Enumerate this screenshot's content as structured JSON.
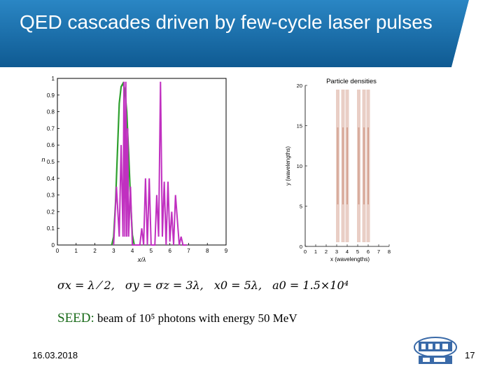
{
  "slide": {
    "title": "QED cascades driven by few-cycle laser pulses",
    "date": "16.03.2018",
    "page_number": "17",
    "header_color": "#1a6faa",
    "header_dark": "#0d4a78"
  },
  "formula": {
    "sigma_x": "σx = λ ⁄ 2,",
    "sigma_yz": "σy = σz = 3λ,",
    "x0": "x0 = 5λ,",
    "a0": "a0 = 1.5×10⁴"
  },
  "seed": {
    "label": "SEED:",
    "text": "beam of 10⁵ photons with energy 50 MeV"
  },
  "chart_data": [
    {
      "type": "line",
      "title": "",
      "xlabel": "x/λ",
      "ylabel": "n",
      "xlim": [
        0,
        9
      ],
      "ylim": [
        0,
        1
      ],
      "x_ticks": [
        "0",
        "1",
        "2",
        "3",
        "4",
        "5",
        "6",
        "7",
        "8",
        "9"
      ],
      "y_ticks": [
        "0",
        "0.1",
        "0.2",
        "0.3",
        "0.4",
        "0.5",
        "0.6",
        "0.7",
        "0.8",
        "0.9",
        "1"
      ],
      "series": [
        {
          "color": "#2ea02e",
          "x": [
            2.9,
            3.0,
            3.1,
            3.2,
            3.3,
            3.4,
            3.5,
            3.6,
            3.7,
            3.8,
            3.9,
            4.0,
            4.1
          ],
          "y": [
            0,
            0.05,
            0.25,
            0.55,
            0.85,
            0.95,
            0.97,
            0.93,
            0.8,
            0.55,
            0.28,
            0.06,
            0
          ]
        },
        {
          "color": "#c030c0",
          "x": [
            3.0,
            3.15,
            3.3,
            3.4,
            3.5,
            3.55,
            3.6,
            3.65,
            3.7,
            3.75,
            3.8,
            3.9,
            4.0,
            4.05,
            4.1,
            4.2,
            4.3,
            4.4,
            4.5,
            4.6,
            4.7,
            4.8,
            4.9,
            5.0,
            5.1,
            5.2,
            5.3,
            5.4,
            5.5,
            5.6,
            5.7,
            5.8,
            5.9,
            6.0,
            6.1,
            6.2,
            6.3,
            6.5,
            6.6,
            6.7,
            6.8,
            6.9
          ],
          "y": [
            0,
            0.35,
            0.05,
            0.6,
            0.05,
            0.98,
            0.05,
            0.98,
            0.05,
            0.7,
            0.05,
            0.35,
            0,
            0,
            0,
            0,
            0,
            0,
            0.1,
            0,
            0.4,
            0,
            0.4,
            0,
            0,
            0,
            0.3,
            0.05,
            0.98,
            0.05,
            0.38,
            0,
            0.38,
            0.02,
            0.2,
            0,
            0.3,
            0,
            0.05,
            0,
            0,
            0
          ]
        }
      ]
    },
    {
      "type": "heatmap",
      "title": "Particle densities",
      "xlabel": "x (wavelengths)",
      "ylabel": "y (wavelengths)",
      "xlim": [
        0,
        8
      ],
      "ylim": [
        0,
        20
      ],
      "x_ticks": [
        "0",
        "1",
        "2",
        "3",
        "4",
        "5",
        "6",
        "7",
        "8"
      ],
      "y_ticks": [
        "0",
        "5",
        "10",
        "15",
        "20"
      ],
      "color": "#b05030",
      "bands_x": [
        3.1,
        3.6,
        4.0,
        5.1,
        5.6,
        6.0
      ]
    }
  ]
}
